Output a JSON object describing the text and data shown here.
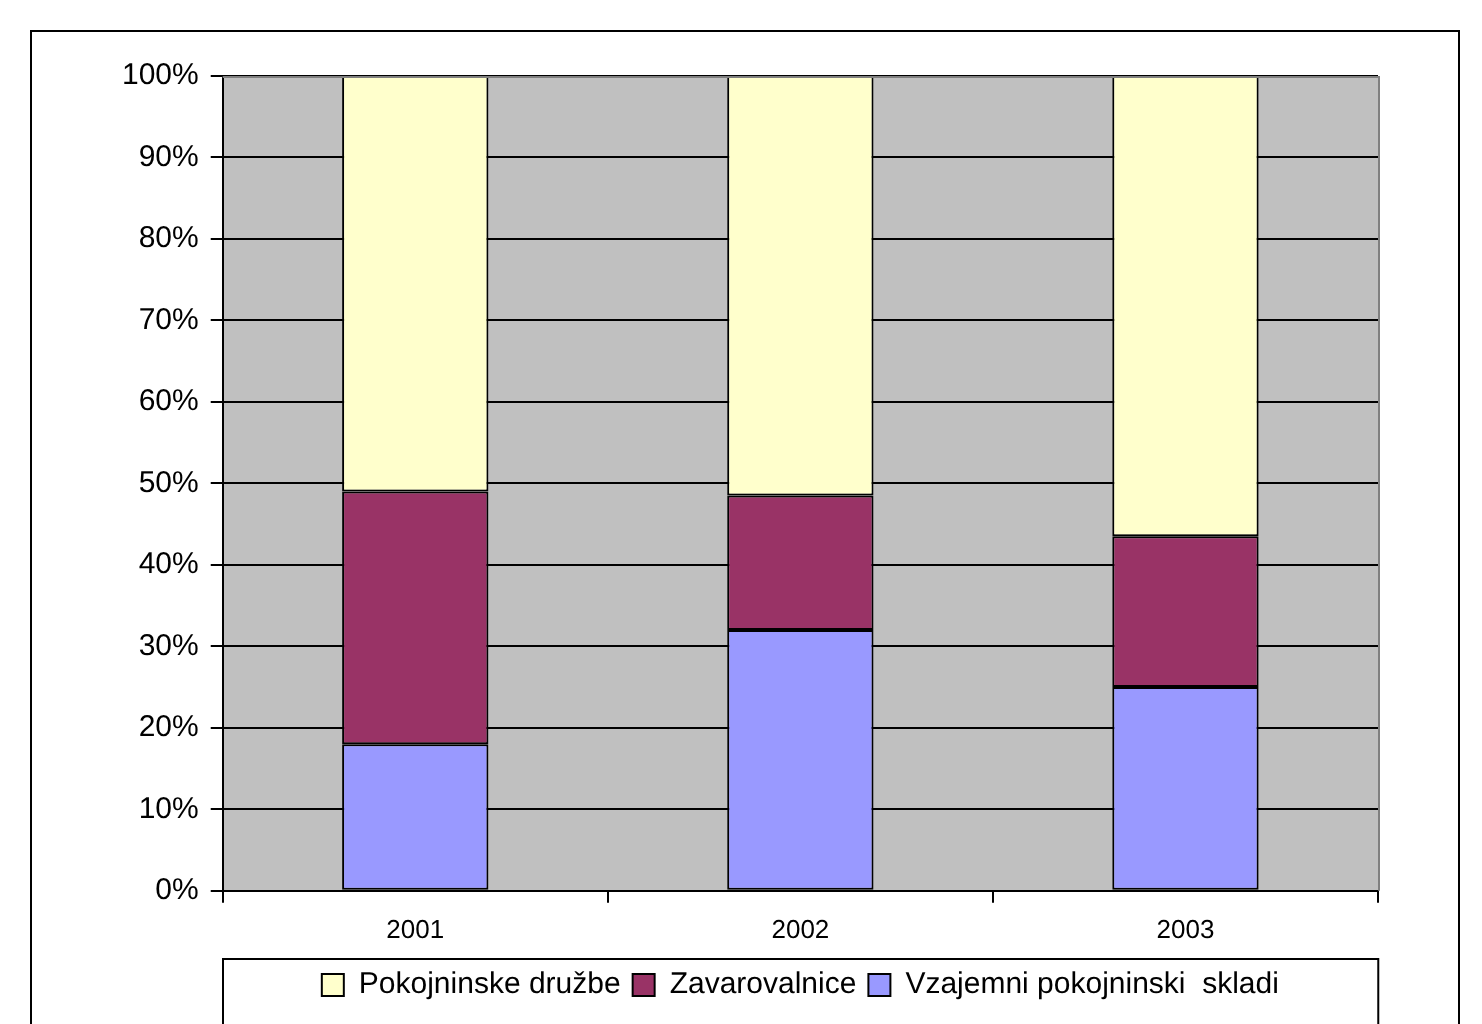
{
  "chart_data": {
    "type": "bar",
    "stacked": true,
    "categories": [
      "2001",
      "2002",
      "2003"
    ],
    "series": [
      {
        "name": "Vzajemni pokojninski  skladi",
        "color": "#9999ff",
        "values": [
          18,
          32,
          25
        ]
      },
      {
        "name": "Zavarovalnice",
        "color": "#993366",
        "values": [
          31,
          16.5,
          18.5
        ]
      },
      {
        "name": "Pokojninske družbe",
        "color": "#ffffcc",
        "values": [
          51,
          51.5,
          56.5
        ]
      }
    ],
    "ylim": [
      0,
      100
    ],
    "yticks": [
      {
        "value": 0,
        "label": "0%"
      },
      {
        "value": 10,
        "label": "10%"
      },
      {
        "value": 20,
        "label": "20%"
      },
      {
        "value": 30,
        "label": "30%"
      },
      {
        "value": 40,
        "label": "40%"
      },
      {
        "value": 50,
        "label": "50%"
      },
      {
        "value": 60,
        "label": "60%"
      },
      {
        "value": 70,
        "label": "70%"
      },
      {
        "value": 80,
        "label": "80%"
      },
      {
        "value": 90,
        "label": "90%"
      },
      {
        "value": 100,
        "label": "100%"
      }
    ],
    "grid": "y",
    "legend": "bottom"
  }
}
